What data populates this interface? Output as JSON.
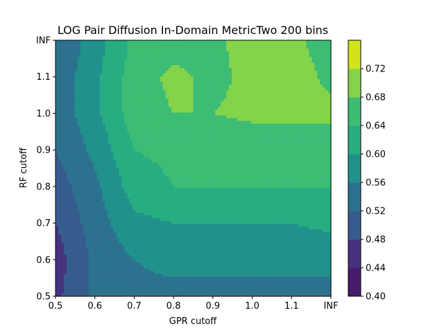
{
  "chart_data": {
    "type": "contour",
    "title": "LOG Pair Diffusion In-Domain MetricTwo 200 bins",
    "xlabel": "GPR cutoff",
    "ylabel": "RF cutoff",
    "x_ticks": [
      "0.5",
      "0.6",
      "0.7",
      "0.8",
      "0.9",
      "1.0",
      "1.1",
      "INF"
    ],
    "y_ticks": [
      "0.5",
      "0.6",
      "0.7",
      "0.8",
      "0.9",
      "1.0",
      "1.1",
      "INF"
    ],
    "xlim": [
      0.5,
      1.2
    ],
    "ylim": [
      0.5,
      1.2
    ],
    "x": [
      0.5,
      0.6,
      0.7,
      0.8,
      0.9,
      1.0,
      1.1,
      1.2
    ],
    "y": [
      0.5,
      0.6,
      0.7,
      0.8,
      0.9,
      1.0,
      1.1,
      1.2
    ],
    "z": [
      [
        0.47,
        0.53,
        0.55,
        0.55,
        0.55,
        0.55,
        0.55,
        0.55
      ],
      [
        0.46,
        0.53,
        0.56,
        0.57,
        0.57,
        0.57,
        0.57,
        0.57
      ],
      [
        0.48,
        0.54,
        0.59,
        0.6,
        0.6,
        0.6,
        0.6,
        0.61
      ],
      [
        0.5,
        0.55,
        0.62,
        0.64,
        0.64,
        0.64,
        0.64,
        0.64
      ],
      [
        0.52,
        0.57,
        0.64,
        0.65,
        0.65,
        0.65,
        0.65,
        0.65
      ],
      [
        0.53,
        0.59,
        0.66,
        0.68,
        0.68,
        0.69,
        0.69,
        0.69
      ],
      [
        0.53,
        0.59,
        0.66,
        0.69,
        0.67,
        0.69,
        0.7,
        0.67
      ],
      [
        0.52,
        0.58,
        0.65,
        0.66,
        0.67,
        0.7,
        0.69,
        0.66
      ]
    ],
    "levels": [
      0.4,
      0.44,
      0.48,
      0.52,
      0.56,
      0.6,
      0.64,
      0.68,
      0.72
    ],
    "level_colors": [
      "#481a6c",
      "#46327e",
      "#365c8d",
      "#2c728e",
      "#21918c",
      "#27ad81",
      "#3dbc74",
      "#84d44b",
      "#d2e21b"
    ],
    "colorbar_ticks": [
      "0.40",
      "0.44",
      "0.48",
      "0.52",
      "0.56",
      "0.60",
      "0.64",
      "0.68",
      "0.72"
    ],
    "grid": false,
    "colorbar": "right"
  }
}
